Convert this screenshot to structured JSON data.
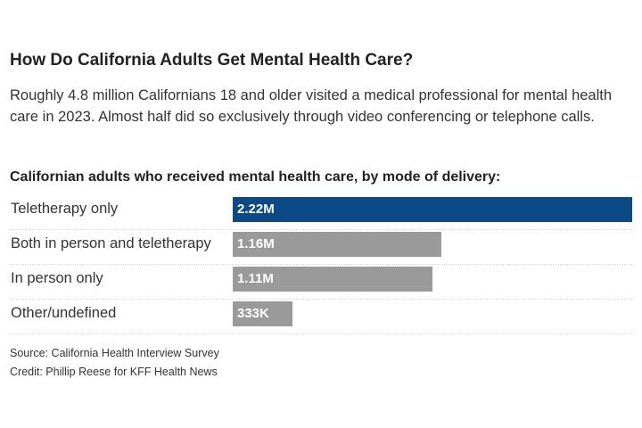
{
  "title": "How Do California Adults Get Mental Health Care?",
  "subtitle": "Roughly 4.8 million Californians 18 and older visited a medical professional for mental health care in 2023. Almost half did so exclusively through video conferencing or telephone calls.",
  "source": "Source: California Health Interview Survey",
  "credit": "Credit: Phillip Reese for KFF Health News",
  "colors": {
    "highlight": "#0b4a86",
    "default": "#9a9a9a"
  },
  "chart_data": {
    "type": "bar",
    "orientation": "horizontal",
    "title": "Californian adults who received mental health care, by mode of delivery:",
    "categories": [
      "Teletherapy only",
      "Both in person and teletherapy",
      "In person only",
      "Other/undefined"
    ],
    "values": [
      2220000,
      1160000,
      1110000,
      333000
    ],
    "value_labels": [
      "2.22M",
      "1.16M",
      "1.11M",
      "333K"
    ],
    "highlight_index": 0,
    "xlim": [
      0,
      2220000
    ],
    "grid": false,
    "legend": "none"
  }
}
